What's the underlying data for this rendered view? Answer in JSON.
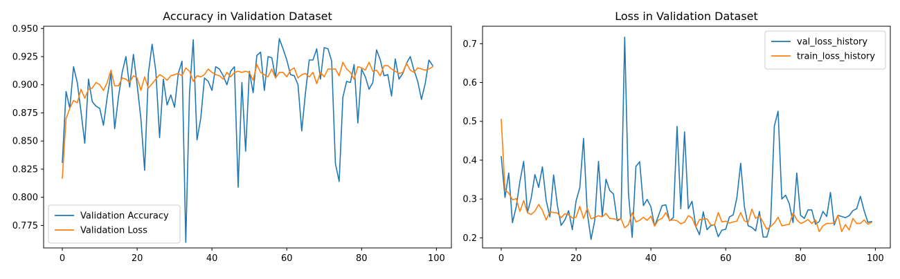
{
  "chart_data": [
    {
      "type": "line",
      "title": "Accuracy in Validation Dataset",
      "xlabel": "",
      "ylabel": "",
      "xlim": [
        -5,
        104
      ],
      "ylim": [
        0.755,
        0.952
      ],
      "xticks": [
        0,
        20,
        40,
        60,
        80,
        100
      ],
      "yticks": [
        0.775,
        0.8,
        0.825,
        0.85,
        0.875,
        0.9,
        0.925,
        0.95
      ],
      "ytick_decimals": 3,
      "grid": false,
      "legend_position": "lower-left",
      "x": [
        0,
        1,
        2,
        3,
        4,
        5,
        6,
        7,
        8,
        9,
        10,
        11,
        12,
        13,
        14,
        15,
        16,
        17,
        18,
        19,
        20,
        21,
        22,
        23,
        24,
        25,
        26,
        27,
        28,
        29,
        30,
        31,
        32,
        33,
        34,
        35,
        36,
        37,
        38,
        39,
        40,
        41,
        42,
        43,
        44,
        45,
        46,
        47,
        48,
        49,
        50,
        51,
        52,
        53,
        54,
        55,
        56,
        57,
        58,
        59,
        60,
        61,
        62,
        63,
        64,
        65,
        66,
        67,
        68,
        69,
        70,
        71,
        72,
        73,
        74,
        75,
        76,
        77,
        78,
        79,
        80,
        81,
        82,
        83,
        84,
        85,
        86,
        87,
        88,
        89,
        90,
        91,
        92,
        93,
        94,
        95,
        96,
        97,
        98,
        99
      ],
      "series": [
        {
          "name": "Validation Accuracy",
          "color": "#1f77b4",
          "values": [
            0.831,
            0.894,
            0.879,
            0.916,
            0.902,
            0.876,
            0.848,
            0.905,
            0.885,
            0.881,
            0.879,
            0.864,
            0.889,
            0.91,
            0.861,
            0.889,
            0.911,
            0.925,
            0.898,
            0.927,
            0.9,
            0.87,
            0.824,
            0.91,
            0.936,
            0.912,
            0.853,
            0.905,
            0.882,
            0.891,
            0.88,
            0.91,
            0.921,
            0.76,
            0.893,
            0.94,
            0.851,
            0.87,
            0.906,
            0.903,
            0.895,
            0.916,
            0.914,
            0.908,
            0.9,
            0.912,
            0.916,
            0.809,
            0.902,
            0.841,
            0.912,
            0.893,
            0.926,
            0.929,
            0.895,
            0.925,
            0.924,
            0.906,
            0.941,
            0.932,
            0.922,
            0.909,
            0.908,
            0.9,
            0.859,
            0.893,
            0.922,
            0.922,
            0.932,
            0.905,
            0.933,
            0.932,
            0.921,
            0.83,
            0.814,
            0.889,
            0.903,
            0.902,
            0.918,
            0.866,
            0.914,
            0.907,
            0.896,
            0.902,
            0.931,
            0.922,
            0.908,
            0.909,
            0.89,
            0.923,
            0.905,
            0.91,
            0.919,
            0.925,
            0.913,
            0.903,
            0.887,
            0.901,
            0.922,
            0.917
          ]
        },
        {
          "name": "Validation Loss",
          "color": "#ff7f0e",
          "values": [
            0.817,
            0.87,
            0.879,
            0.886,
            0.884,
            0.896,
            0.888,
            0.896,
            0.897,
            0.902,
            0.9,
            0.895,
            0.902,
            0.913,
            0.899,
            0.899,
            0.906,
            0.905,
            0.902,
            0.908,
            0.906,
            0.895,
            0.907,
            0.897,
            0.901,
            0.905,
            0.909,
            0.907,
            0.904,
            0.908,
            0.909,
            0.91,
            0.908,
            0.915,
            0.912,
            0.903,
            0.908,
            0.907,
            0.909,
            0.914,
            0.911,
            0.909,
            0.908,
            0.905,
            0.911,
            0.907,
            0.911,
            0.912,
            0.911,
            0.912,
            0.911,
            0.904,
            0.918,
            0.911,
            0.909,
            0.907,
            0.914,
            0.906,
            0.911,
            0.911,
            0.907,
            0.913,
            0.915,
            0.906,
            0.909,
            0.91,
            0.907,
            0.911,
            0.901,
            0.911,
            0.907,
            0.914,
            0.914,
            0.914,
            0.908,
            0.92,
            0.914,
            0.911,
            0.905,
            0.916,
            0.915,
            0.913,
            0.92,
            0.912,
            0.913,
            0.908,
            0.917,
            0.917,
            0.914,
            0.912,
            0.91,
            0.911,
            0.919,
            0.913,
            0.911,
            0.915,
            0.914,
            0.913,
            0.914,
            0.916
          ]
        }
      ]
    },
    {
      "type": "line",
      "title": "Loss in Validation Dataset",
      "xlabel": "",
      "ylabel": "",
      "xlim": [
        -5,
        104
      ],
      "ylim": [
        0.174,
        0.745
      ],
      "xticks": [
        0,
        20,
        40,
        60,
        80,
        100
      ],
      "yticks": [
        0.2,
        0.3,
        0.4,
        0.5,
        0.6,
        0.7
      ],
      "ytick_decimals": 1,
      "grid": false,
      "legend_position": "upper-right",
      "x": [
        0,
        1,
        2,
        3,
        4,
        5,
        6,
        7,
        8,
        9,
        10,
        11,
        12,
        13,
        14,
        15,
        16,
        17,
        18,
        19,
        20,
        21,
        22,
        23,
        24,
        25,
        26,
        27,
        28,
        29,
        30,
        31,
        32,
        33,
        34,
        35,
        36,
        37,
        38,
        39,
        40,
        41,
        42,
        43,
        44,
        45,
        46,
        47,
        48,
        49,
        50,
        51,
        52,
        53,
        54,
        55,
        56,
        57,
        58,
        59,
        60,
        61,
        62,
        63,
        64,
        65,
        66,
        67,
        68,
        69,
        70,
        71,
        72,
        73,
        74,
        75,
        76,
        77,
        78,
        79,
        80,
        81,
        82,
        83,
        84,
        85,
        86,
        87,
        88,
        89,
        90,
        91,
        92,
        93,
        94,
        95,
        96,
        97,
        98,
        99
      ],
      "series": [
        {
          "name": "val_loss_history",
          "color": "#1f77b4",
          "values": [
            0.409,
            0.304,
            0.367,
            0.239,
            0.28,
            0.346,
            0.397,
            0.265,
            0.302,
            0.363,
            0.33,
            0.383,
            0.297,
            0.254,
            0.362,
            0.284,
            0.232,
            0.246,
            0.27,
            0.221,
            0.295,
            0.329,
            0.456,
            0.264,
            0.196,
            0.245,
            0.397,
            0.255,
            0.351,
            0.322,
            0.313,
            0.244,
            0.249,
            0.717,
            0.316,
            0.201,
            0.384,
            0.396,
            0.283,
            0.299,
            0.28,
            0.23,
            0.256,
            0.283,
            0.285,
            0.244,
            0.252,
            0.487,
            0.275,
            0.473,
            0.275,
            0.294,
            0.229,
            0.208,
            0.267,
            0.221,
            0.231,
            0.234,
            0.203,
            0.22,
            0.222,
            0.254,
            0.259,
            0.304,
            0.392,
            0.28,
            0.231,
            0.227,
            0.218,
            0.268,
            0.202,
            0.202,
            0.237,
            0.488,
            0.526,
            0.3,
            0.31,
            0.288,
            0.239,
            0.367,
            0.258,
            0.25,
            0.272,
            0.272,
            0.235,
            0.242,
            0.268,
            0.255,
            0.317,
            0.233,
            0.258,
            0.255,
            0.252,
            0.257,
            0.27,
            0.275,
            0.307,
            0.27,
            0.24,
            0.242
          ]
        },
        {
          "name": "train_loss_history",
          "color": "#ff7f0e",
          "values": [
            0.505,
            0.324,
            0.315,
            0.298,
            0.301,
            0.268,
            0.296,
            0.265,
            0.26,
            0.269,
            0.286,
            0.271,
            0.246,
            0.267,
            0.265,
            0.264,
            0.252,
            0.262,
            0.259,
            0.251,
            0.253,
            0.281,
            0.25,
            0.276,
            0.249,
            0.253,
            0.257,
            0.254,
            0.263,
            0.25,
            0.249,
            0.247,
            0.249,
            0.226,
            0.234,
            0.265,
            0.241,
            0.245,
            0.253,
            0.245,
            0.256,
            0.23,
            0.246,
            0.25,
            0.265,
            0.245,
            0.246,
            0.244,
            0.236,
            0.24,
            0.257,
            0.251,
            0.228,
            0.247,
            0.248,
            0.249,
            0.233,
            0.233,
            0.265,
            0.241,
            0.243,
            0.238,
            0.241,
            0.243,
            0.265,
            0.244,
            0.239,
            0.274,
            0.25,
            0.257,
            0.24,
            0.222,
            0.229,
            0.238,
            0.253,
            0.231,
            0.233,
            0.235,
            0.264,
            0.247,
            0.237,
            0.241,
            0.247,
            0.237,
            0.246,
            0.216,
            0.231,
            0.237,
            0.237,
            0.238,
            0.258,
            0.216,
            0.234,
            0.22,
            0.25,
            0.237,
            0.237,
            0.246,
            0.235,
            0.24
          ]
        }
      ]
    }
  ]
}
